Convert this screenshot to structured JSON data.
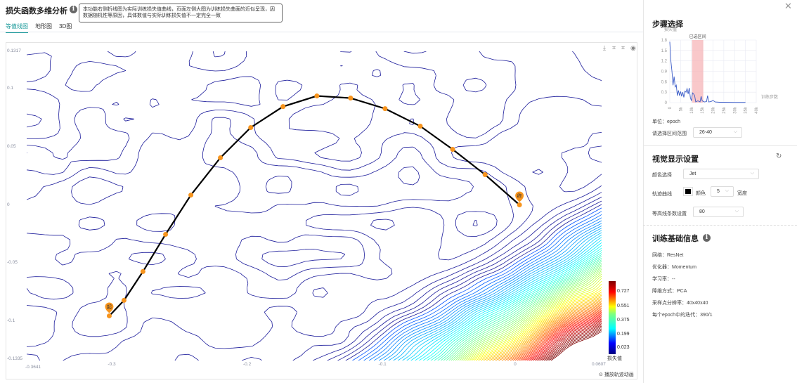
{
  "header": {
    "title": "损失函数多维分析",
    "tooltip": "本功能右侧折线图为实际训练损失值曲线，页面左侧大图为训练损失曲面的近似呈现，因数据随机性等原因，具体数值与实际训练损失值不一定完全一致"
  },
  "tabs": [
    {
      "label": "等值线图",
      "active": true
    },
    {
      "label": "地形图",
      "active": false
    },
    {
      "label": "3D图",
      "active": false
    }
  ],
  "toolbar": {
    "icons": [
      "download-icon",
      "crop-icon",
      "crop-reset-icon",
      "eye-icon"
    ]
  },
  "contour_chart": {
    "x_ticks": [
      "-0.3641",
      "-0.3",
      "-0.2",
      "-0.1",
      "0",
      "0.0607"
    ],
    "y_ticks": [
      "0.1317",
      "0.1",
      "0.05",
      "0",
      "-0.05",
      "-0.1",
      "-0.1335"
    ],
    "xlim": [
      -0.3641,
      0.0607
    ],
    "ylim": [
      -0.1335,
      0.1317
    ],
    "colormap": "Jet",
    "trajectory": {
      "color": "#000000",
      "marker_color": "#f7941d",
      "points": [
        [
          -0.3031,
          -0.0952
        ],
        [
          -0.2922,
          -0.0819
        ],
        [
          -0.2782,
          -0.0572
        ],
        [
          -0.2615,
          -0.0253
        ],
        [
          -0.2428,
          0.0084
        ],
        [
          -0.221,
          0.0404
        ],
        [
          -0.1986,
          0.0663
        ],
        [
          -0.1747,
          0.0843
        ],
        [
          -0.1497,
          0.0934
        ],
        [
          -0.1248,
          0.0916
        ],
        [
          -0.0993,
          0.0825
        ],
        [
          -0.0733,
          0.0675
        ],
        [
          -0.0494,
          0.0476
        ],
        [
          -0.0254,
          0.0259
        ],
        [
          0,
          0
        ]
      ],
      "start_label": "起",
      "end_label": "终"
    },
    "colorbar": {
      "ticks": [
        "0.727",
        "0.551",
        "0.375",
        "0.199",
        "0.023"
      ],
      "label": "损失值"
    },
    "play_label": "播放轨迹动画"
  },
  "step_select": {
    "title": "步骤选择",
    "chart_data": {
      "type": "line",
      "ylabel": "损失值",
      "xlabel": "训练步数",
      "ylim": [
        0,
        1.8
      ],
      "xlim": [
        0,
        40000
      ],
      "y_ticks": [
        "1.8",
        "1.5",
        "1.2",
        "0.9",
        "0.6",
        "0.3",
        "0"
      ],
      "x_ticks": [
        "0",
        "5k",
        "10k",
        "15k",
        "20k",
        "25k",
        "30k",
        "35k",
        "40k"
      ],
      "selected_label": "已选区间",
      "selected_range": [
        10300,
        15500
      ],
      "x": [
        0,
        500,
        1000,
        1500,
        2000,
        2500,
        3000,
        3500,
        4000,
        4500,
        5000,
        5500,
        6000,
        6500,
        7000,
        7500,
        8000,
        8500,
        9000,
        9500,
        10000,
        10500,
        11000,
        11500,
        12000,
        13000,
        14000,
        14500,
        15000,
        16000,
        17000,
        17500,
        18000,
        19000,
        20000,
        21000,
        23000,
        25000,
        30000,
        35000
      ],
      "y": [
        1.75,
        1.2,
        0.9,
        0.5,
        0.75,
        0.45,
        0.5,
        0.2,
        0.35,
        0.2,
        0.32,
        0.18,
        0.3,
        0.15,
        0.33,
        0.3,
        0.4,
        0.25,
        0.42,
        0.15,
        0.05,
        0.28,
        0.25,
        0.2,
        0.02,
        0.05,
        0.02,
        0.18,
        0.05,
        0.02,
        0.03,
        0.2,
        0.02,
        0.03,
        0.06,
        0.02,
        0.01,
        0.01,
        0.005,
        0.005
      ]
    },
    "unit": "单位：epoch",
    "range_label": "请选择区间范围",
    "range_value": "26-40"
  },
  "visual": {
    "title": "视觉显示设置",
    "color_label": "颜色选择",
    "color_value": "Jet",
    "track_label": "轨迹曲线",
    "track_color_label": "颜色",
    "track_width_value": "5",
    "track_width_label": "宽度",
    "contour_label": "等高线条数设置",
    "contour_value": "80"
  },
  "info": {
    "title": "训练基础信息",
    "rows": [
      "网络：ResNet",
      "优化器：Momentum",
      "学习率：--",
      "降维方式：PCA",
      "采样点分辨率：40x40x40",
      "每个epoch中的迭代：390/1"
    ]
  }
}
